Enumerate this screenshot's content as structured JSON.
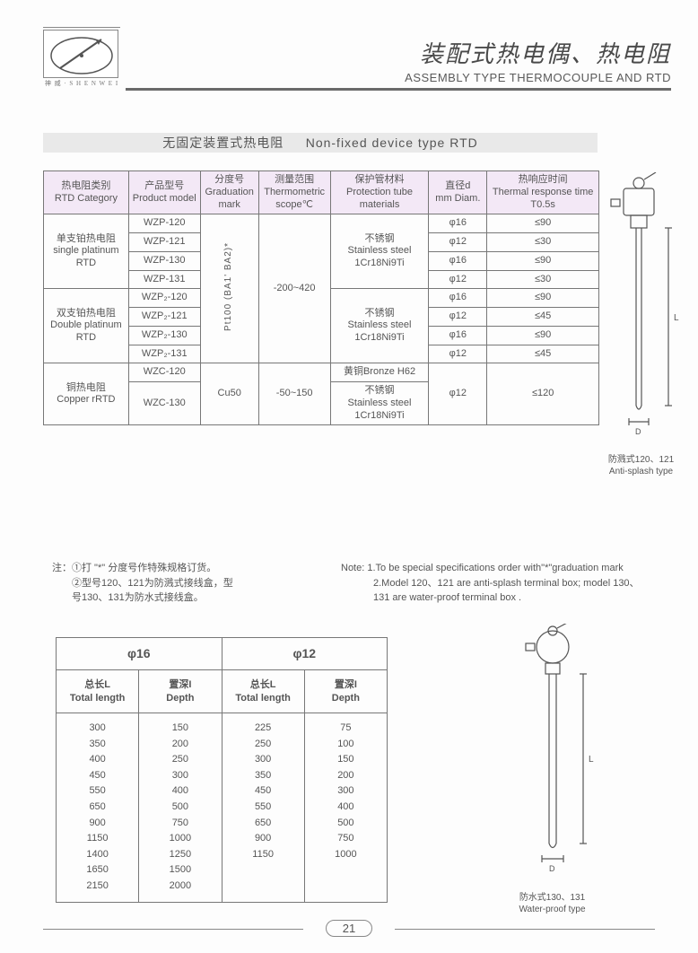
{
  "header": {
    "logo_brand": "神 威 · S H E N W E I",
    "title_cn": "装配式热电偶、热电阻",
    "title_en": "ASSEMBLY TYPE THERMOCOUPLE AND RTD"
  },
  "section": {
    "title_cn": "无固定装置式热电阻",
    "title_en": "Non-fixed  device type RTD"
  },
  "table1": {
    "headers": {
      "cat_cn": "热电阻类别",
      "cat_en": "RTD Category",
      "model_cn": "产品型号",
      "model_en": "Product model",
      "grad_cn": "分度号",
      "grad_en": "Graduation mark",
      "scope_cn": "测量范围",
      "scope_en": "Thermometric scope℃",
      "mat_cn": "保护管材料",
      "mat_en": "Protection tube materials",
      "diam_cn": "直径d",
      "diam_en": "mm Diam.",
      "resp_cn": "热响应时间",
      "resp_en": "Thermal response time T0.5s"
    },
    "cat_single_cn": "单支铂热电阻",
    "cat_single_en": "single platinum RTD",
    "cat_double_cn": "双支铂热电阻",
    "cat_double_en": "Double platinum RTD",
    "cat_copper_cn": "铜热电阻",
    "cat_copper_en": "Copper rRTD",
    "grad_pt": "Pt100\n(BA1' BA2)*",
    "grad_cu": "Cu50",
    "scope_pt": "-200~420",
    "scope_cu": "-50~150",
    "mat_ss_cn": "不锈钢",
    "mat_ss_en": "Stainless steel 1Cr18Ni9Ti",
    "mat_bronze": "黄铜Bronze H62",
    "models_single": [
      "WZP-120",
      "WZP-121",
      "WZP-130",
      "WZP-131"
    ],
    "models_double": [
      "WZP₂-120",
      "WZP₂-121",
      "WZP₂-130",
      "WZP₂-131"
    ],
    "models_copper": [
      "WZC-120",
      "WZC-130"
    ],
    "diams_pt": [
      "φ16",
      "φ12",
      "φ16",
      "φ12",
      "φ16",
      "φ12",
      "φ16",
      "φ12"
    ],
    "resps_pt": [
      "≤90",
      "≤30",
      "≤90",
      "≤30",
      "≤90",
      "≤45",
      "≤90",
      "≤45"
    ],
    "diam_cu": "φ12",
    "resp_cu": "≤120"
  },
  "notes": {
    "left1": "注：①打 \"*\" 分度号作特殊规格订货。",
    "left2": "②型号120、121为防溅式接线盒，型",
    "left3": "号130、131为防水式接线盒。",
    "right1": "Note: 1.To be  special specifications order with\"*\"graduation mark",
    "right2": "2.Model 120、121 are anti-splash terminal box; model 130、",
    "right3": "131 are water-proof terminal box ."
  },
  "table2": {
    "h16": "φ16",
    "h12": "φ12",
    "tl_cn": "总长L",
    "tl_en": "Total length",
    "depth_cn": "置深I",
    "depth_en": "Depth",
    "col16_L": [
      "300",
      "350",
      "400",
      "450",
      "550",
      "650",
      "900",
      "1150",
      "1400",
      "1650",
      "2150"
    ],
    "col16_D": [
      "150",
      "200",
      "250",
      "300",
      "400",
      "500",
      "750",
      "1000",
      "1250",
      "1500",
      "2000"
    ],
    "col12_L": [
      "225",
      "250",
      "300",
      "350",
      "450",
      "550",
      "650",
      "900",
      "1150"
    ],
    "col12_D": [
      "75",
      "100",
      "150",
      "200",
      "300",
      "400",
      "500",
      "750",
      "1000"
    ]
  },
  "diagrams": {
    "d1_cn": "防溅式120、121",
    "d1_en": "Anti-splash type",
    "d2_cn": "防水式130、131",
    "d2_en": "Water-proof type",
    "dim_D": "D",
    "dim_L": "L"
  },
  "page_number": "21",
  "colors": {
    "header_row": "#f3e8f6",
    "section_bg": "#e9e9e9",
    "border": "#777777",
    "text": "#555555"
  }
}
